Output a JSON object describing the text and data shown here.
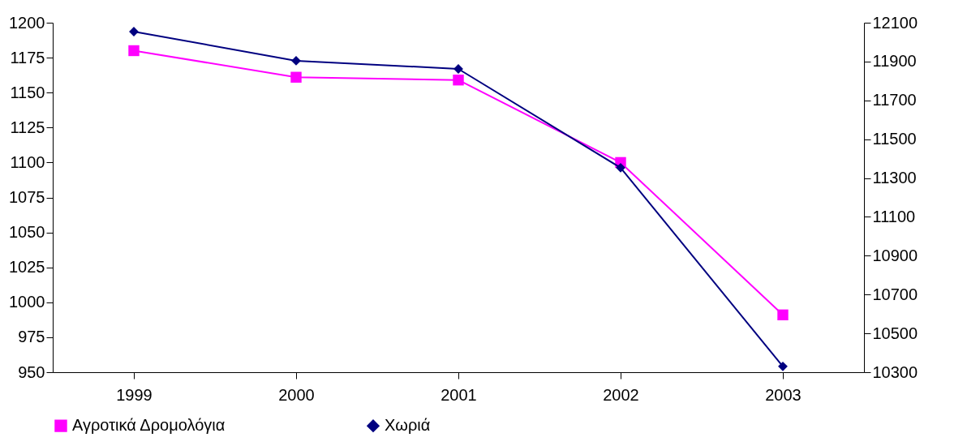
{
  "chart_data": {
    "type": "line",
    "categories": [
      "1999",
      "2000",
      "2001",
      "2002",
      "2003"
    ],
    "series": [
      {
        "name": "Αγροτικά Δρομολόγια",
        "color": "#ff00ff",
        "marker": "square",
        "values": [
          1180,
          1161,
          1159,
          1100,
          991
        ]
      },
      {
        "name": "Χωριά",
        "color": "#000080",
        "marker": "diamond",
        "axis": "y2",
        "values": [
          12054,
          11904,
          11862,
          11353,
          10330
        ]
      }
    ],
    "ylim": [
      950,
      1200
    ],
    "yticks": [
      950,
      975,
      1000,
      1025,
      1050,
      1075,
      1100,
      1125,
      1150,
      1175,
      1200
    ],
    "y2lim": [
      10300,
      12100
    ],
    "y2ticks": [
      10300,
      10500,
      10700,
      10900,
      11100,
      11300,
      11500,
      11700,
      11900,
      12100
    ],
    "legend": "bottom",
    "grid": false
  }
}
